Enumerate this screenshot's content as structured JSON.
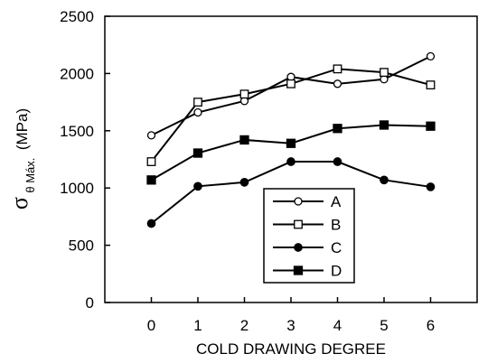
{
  "chart_data": {
    "type": "line",
    "xlabel": "COLD DRAWING DEGREE",
    "ylabel_symbol": "σ",
    "ylabel_subscript": "θ Máx.",
    "ylabel_unit": "(MPa)",
    "x": [
      0,
      1,
      2,
      3,
      4,
      5,
      6
    ],
    "xlim": [
      -1,
      7
    ],
    "ylim": [
      0,
      2500
    ],
    "xticks": [
      "0",
      "1",
      "2",
      "3",
      "4",
      "5",
      "6"
    ],
    "yticks": [
      "0",
      "500",
      "1000",
      "1500",
      "2000",
      "2500"
    ],
    "grid": false,
    "legend_position": "inside lower right",
    "series": [
      {
        "name": "A",
        "marker": "open-circle",
        "values": [
          1460,
          1660,
          1760,
          1970,
          1910,
          1950,
          2150
        ]
      },
      {
        "name": "B",
        "marker": "open-square",
        "values": [
          1230,
          1750,
          1820,
          1910,
          2040,
          2010,
          1900
        ]
      },
      {
        "name": "C",
        "marker": "filled-circle",
        "values": [
          690,
          1015,
          1050,
          1230,
          1230,
          1070,
          1010
        ]
      },
      {
        "name": "D",
        "marker": "filled-square",
        "values": [
          1070,
          1305,
          1420,
          1390,
          1520,
          1550,
          1540
        ]
      }
    ]
  }
}
